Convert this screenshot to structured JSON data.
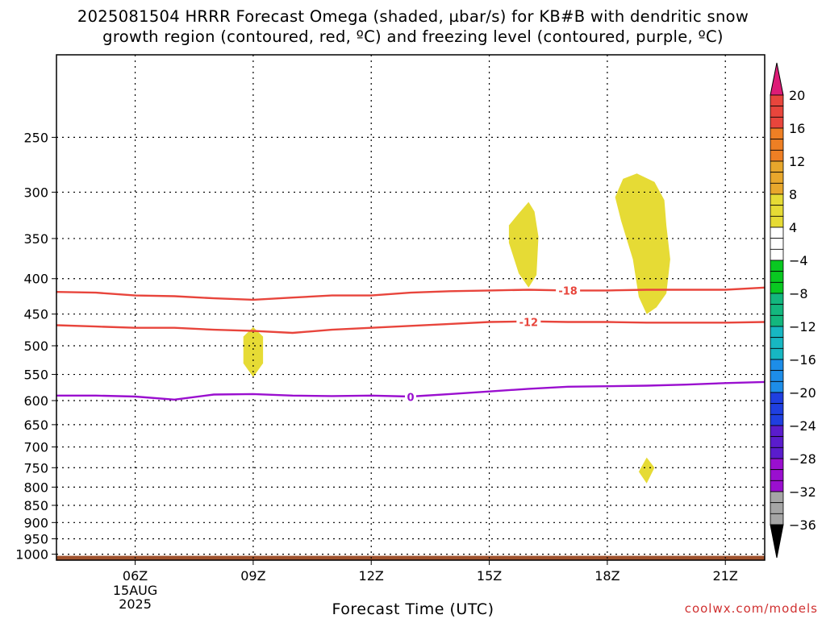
{
  "title_line1": "2025081504 HRRR Forecast Omega (shaded, µbar/s) for KB#B with dendritic snow",
  "title_line2": "growth region (contoured, red, ºC) and freezing level (contoured, purple, ºC)",
  "xlabel": "Forecast Time (UTC)",
  "credit": "coolwx.com/models",
  "chart_data": {
    "type": "time-height-contour",
    "title": "2025081504 HRRR Forecast Omega (shaded, µbar/s) for KB#B with dendritic snow growth region (contoured, red, ºC) and freezing level (contoured, purple, ºC)",
    "xlabel": "Forecast Time (UTC)",
    "ylabel": "",
    "x_units": "hour UTC, 15 Aug 2025",
    "xlim": [
      4,
      22
    ],
    "x_ticks": [
      {
        "x": 6,
        "label": "06Z",
        "sub": [
          "15AUG",
          "2025"
        ]
      },
      {
        "x": 9,
        "label": "09Z"
      },
      {
        "x": 12,
        "label": "12Z"
      },
      {
        "x": 15,
        "label": "15Z"
      },
      {
        "x": 18,
        "label": "18Z"
      },
      {
        "x": 21,
        "label": "21Z"
      }
    ],
    "y_scale": "log",
    "y_units": "hPa",
    "ylim": [
      1020,
      190
    ],
    "y_ticks": [
      250,
      300,
      350,
      400,
      450,
      500,
      550,
      600,
      650,
      700,
      750,
      800,
      850,
      900,
      950,
      1000
    ],
    "grid": true,
    "contours": [
      {
        "name": "-18",
        "color": "#e8453c",
        "label": "-18",
        "label_at": [
          17.0,
          416
        ],
        "points": [
          [
            4,
            418
          ],
          [
            5,
            419
          ],
          [
            6,
            423
          ],
          [
            7,
            424
          ],
          [
            8,
            427
          ],
          [
            9,
            429
          ],
          [
            10,
            426
          ],
          [
            11,
            423
          ],
          [
            12,
            423
          ],
          [
            13,
            419
          ],
          [
            14,
            417
          ],
          [
            15,
            416
          ],
          [
            16,
            415
          ],
          [
            17,
            416
          ],
          [
            18,
            416
          ],
          [
            19,
            415
          ],
          [
            20,
            415
          ],
          [
            21,
            415
          ],
          [
            22,
            412
          ]
        ]
      },
      {
        "name": "-12",
        "color": "#e8453c",
        "label": "-12",
        "label_at": [
          16.0,
          462
        ],
        "points": [
          [
            4,
            467
          ],
          [
            5,
            469
          ],
          [
            6,
            471
          ],
          [
            7,
            471
          ],
          [
            8,
            474
          ],
          [
            9,
            476
          ],
          [
            10,
            479
          ],
          [
            11,
            474
          ],
          [
            12,
            471
          ],
          [
            13,
            468
          ],
          [
            14,
            465
          ],
          [
            15,
            462
          ],
          [
            16,
            461
          ],
          [
            17,
            462
          ],
          [
            18,
            462
          ],
          [
            19,
            463
          ],
          [
            20,
            463
          ],
          [
            21,
            463
          ],
          [
            22,
            462
          ]
        ]
      },
      {
        "name": "0",
        "color": "#9a0fcf",
        "label": "0",
        "label_at": [
          13.0,
          593
        ],
        "points": [
          [
            4,
            590
          ],
          [
            5,
            590
          ],
          [
            6,
            592
          ],
          [
            7,
            598
          ],
          [
            8,
            588
          ],
          [
            9,
            587
          ],
          [
            10,
            590
          ],
          [
            11,
            591
          ],
          [
            12,
            590
          ],
          [
            13,
            592
          ],
          [
            14,
            587
          ],
          [
            15,
            582
          ],
          [
            16,
            577
          ],
          [
            17,
            573
          ],
          [
            18,
            572
          ],
          [
            19,
            571
          ],
          [
            20,
            569
          ],
          [
            21,
            566
          ],
          [
            22,
            564
          ]
        ]
      }
    ],
    "shaded_regions": [
      {
        "range": "4 to 8",
        "color": "#e6db35",
        "points": [
          [
            9.0,
            470
          ],
          [
            9.25,
            485
          ],
          [
            9.25,
            530
          ],
          [
            9.0,
            555
          ],
          [
            8.75,
            530
          ],
          [
            8.75,
            485
          ]
        ]
      },
      {
        "range": "4 to 8",
        "color": "#e6db35",
        "points": [
          [
            16.0,
            310
          ],
          [
            16.15,
            320
          ],
          [
            16.25,
            348
          ],
          [
            16.2,
            395
          ],
          [
            16.0,
            412
          ],
          [
            15.75,
            393
          ],
          [
            15.5,
            355
          ],
          [
            15.5,
            335
          ],
          [
            15.75,
            322
          ]
        ]
      },
      {
        "range": "4 to 8",
        "color": "#e6db35",
        "points": [
          [
            18.75,
            282
          ],
          [
            19.2,
            290
          ],
          [
            19.45,
            308
          ],
          [
            19.5,
            335
          ],
          [
            19.6,
            375
          ],
          [
            19.5,
            420
          ],
          [
            19.25,
            440
          ],
          [
            19.0,
            450
          ],
          [
            18.8,
            425
          ],
          [
            18.65,
            375
          ],
          [
            18.35,
            330
          ],
          [
            18.2,
            305
          ],
          [
            18.4,
            287
          ]
        ]
      },
      {
        "range": "4 to 8",
        "color": "#e6db35",
        "points": [
          [
            19.0,
            725
          ],
          [
            19.2,
            750
          ],
          [
            19.0,
            790
          ],
          [
            18.8,
            760
          ]
        ]
      }
    ],
    "ground_color": "#a0522d",
    "colorbar": {
      "label_values": [
        "20",
        "16",
        "12",
        "8",
        "4",
        "-4",
        "-8",
        "-12",
        "-16",
        "-20",
        "-24",
        "-28",
        "-32",
        "-36"
      ],
      "colors": [
        "#dd1c77",
        "#e8453c",
        "#ee7f24",
        "#e8a72c",
        "#e6db35",
        "#ffffff",
        "#09c821",
        "#13b77e",
        "#17b7c2",
        "#1d8de8",
        "#1f3fe0",
        "#5a1ccc",
        "#9a0fcf",
        "#a5a5a5",
        "#000000"
      ]
    }
  }
}
